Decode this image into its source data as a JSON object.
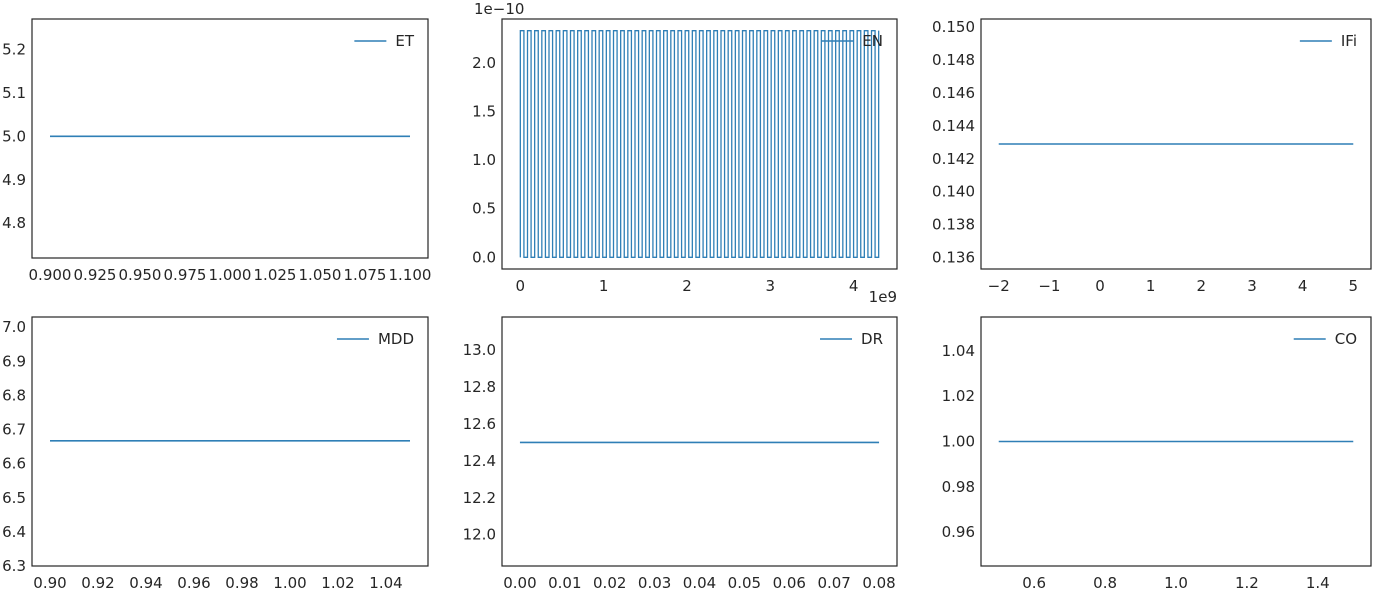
{
  "figure": {
    "background": "#ffffff",
    "line_color": "#2f7fb6",
    "frame_color": "#262626"
  },
  "chart_data": [
    {
      "type": "line",
      "series": [
        {
          "name": "ET",
          "x": [
            0.9,
            1.1
          ],
          "y": [
            5.0,
            5.0
          ]
        }
      ],
      "xlim": [
        0.89,
        1.11
      ],
      "ylim": [
        4.72,
        5.27
      ],
      "xticks": [
        0.9,
        0.925,
        0.95,
        0.975,
        1.0,
        1.025,
        1.05,
        1.075,
        1.1
      ],
      "xtick_labels": [
        "0.900",
        "0.925",
        "0.950",
        "0.975",
        "1.000",
        "1.025",
        "1.050",
        "1.075",
        "1.100"
      ],
      "yticks": [
        4.8,
        4.9,
        5.0,
        5.1,
        5.2
      ],
      "ytick_labels": [
        "4.8",
        "4.9",
        "5.0",
        "5.1",
        "5.2"
      ],
      "legend": "top-right",
      "grid": false
    },
    {
      "type": "line",
      "series": [
        {
          "name": "EN",
          "pattern": "oscillating",
          "x_range": [
            0,
            4300000000
          ],
          "y_range": [
            0,
            2.33e-10
          ],
          "cycles": 100
        }
      ],
      "xlim": [
        -220000000,
        4520000000
      ],
      "ylim": [
        -1.2e-11,
        2.45e-10
      ],
      "xticks": [
        0,
        1000000000,
        2000000000,
        3000000000,
        4000000000
      ],
      "xtick_labels": [
        "0",
        "1",
        "2",
        "3",
        "4"
      ],
      "yticks": [
        0,
        5e-11,
        1e-10,
        1.5e-10,
        2e-10
      ],
      "ytick_labels": [
        "0.0",
        "0.5",
        "1.0",
        "1.5",
        "2.0"
      ],
      "x_offset_label": "1e9",
      "y_offset_label": "1e−10",
      "legend": "top-right",
      "grid": false
    },
    {
      "type": "line",
      "series": [
        {
          "name": "IFi",
          "x": [
            -2,
            5
          ],
          "y": [
            0.1429,
            0.1429
          ]
        }
      ],
      "xlim": [
        -2.35,
        5.35
      ],
      "ylim": [
        0.1353,
        0.1505
      ],
      "xticks": [
        -2,
        -1,
        0,
        1,
        2,
        3,
        4,
        5
      ],
      "xtick_labels": [
        "−2",
        "−1",
        "0",
        "1",
        "2",
        "3",
        "4",
        "5"
      ],
      "yticks": [
        0.136,
        0.138,
        0.14,
        0.142,
        0.144,
        0.146,
        0.148,
        0.15
      ],
      "ytick_labels": [
        "0.136",
        "0.138",
        "0.140",
        "0.142",
        "0.144",
        "0.146",
        "0.148",
        "0.150"
      ],
      "legend": "top-right",
      "grid": false
    },
    {
      "type": "line",
      "series": [
        {
          "name": "MDD",
          "x": [
            0.9,
            1.05
          ],
          "y": [
            6.667,
            6.667
          ]
        }
      ],
      "xlim": [
        0.8925,
        1.0575
      ],
      "ylim": [
        6.3,
        7.03
      ],
      "xticks": [
        0.9,
        0.92,
        0.94,
        0.96,
        0.98,
        1.0,
        1.02,
        1.04
      ],
      "xtick_labels": [
        "0.90",
        "0.92",
        "0.94",
        "0.96",
        "0.98",
        "1.00",
        "1.02",
        "1.04"
      ],
      "yticks": [
        6.3,
        6.4,
        6.5,
        6.6,
        6.7,
        6.8,
        6.9,
        7.0
      ],
      "ytick_labels": [
        "6.3",
        "6.4",
        "6.5",
        "6.6",
        "6.7",
        "6.8",
        "6.9",
        "7.0"
      ],
      "legend": "top-right",
      "grid": false
    },
    {
      "type": "line",
      "series": [
        {
          "name": "DR",
          "x": [
            0.0,
            0.08
          ],
          "y": [
            12.5,
            12.5
          ]
        }
      ],
      "xlim": [
        -0.004,
        0.084
      ],
      "ylim": [
        11.83,
        13.18
      ],
      "xticks": [
        0.0,
        0.01,
        0.02,
        0.03,
        0.04,
        0.05,
        0.06,
        0.07,
        0.08
      ],
      "xtick_labels": [
        "0.00",
        "0.01",
        "0.02",
        "0.03",
        "0.04",
        "0.05",
        "0.06",
        "0.07",
        "0.08"
      ],
      "yticks": [
        12.0,
        12.2,
        12.4,
        12.6,
        12.8,
        13.0
      ],
      "ytick_labels": [
        "12.0",
        "12.2",
        "12.4",
        "12.6",
        "12.8",
        "13.0"
      ],
      "legend": "top-right",
      "grid": false
    },
    {
      "type": "line",
      "series": [
        {
          "name": "CO",
          "x": [
            0.5,
            1.5
          ],
          "y": [
            1.0,
            1.0
          ]
        }
      ],
      "xlim": [
        0.45,
        1.55
      ],
      "ylim": [
        0.945,
        1.055
      ],
      "xticks": [
        0.6,
        0.8,
        1.0,
        1.2,
        1.4
      ],
      "xtick_labels": [
        "0.6",
        "0.8",
        "1.0",
        "1.2",
        "1.4"
      ],
      "yticks": [
        0.96,
        0.98,
        1.0,
        1.02,
        1.04
      ],
      "ytick_labels": [
        "0.96",
        "0.98",
        "1.00",
        "1.02",
        "1.04"
      ],
      "legend": "top-right",
      "grid": false
    }
  ]
}
